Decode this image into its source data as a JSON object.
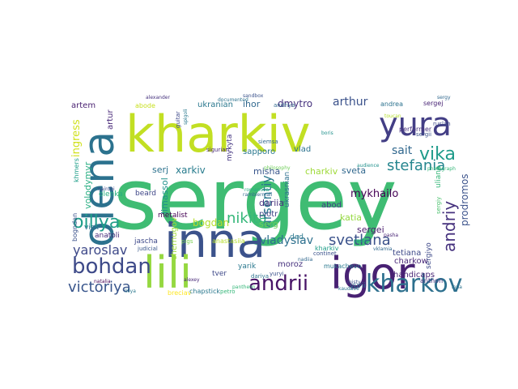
{
  "word_cloud": {
    "palette": "viridis",
    "background": "#ffffff",
    "words": [
      {
        "text": "sergey",
        "color": "#3fbc73"
      },
      {
        "text": "kharkiv",
        "color": "#c2df23"
      },
      {
        "text": "inna",
        "color": "#3b528b"
      },
      {
        "text": "igor",
        "color": "#482173"
      },
      {
        "text": "olena",
        "color": "#2c728e"
      },
      {
        "text": "lili",
        "color": "#95d840"
      },
      {
        "text": "yura",
        "color": "#433e85"
      },
      {
        "text": "kharkov",
        "color": "#2d708e"
      },
      {
        "text": "andrii",
        "color": "#481467"
      },
      {
        "text": "bohdan",
        "color": "#3e4a89"
      },
      {
        "text": "victoriya",
        "color": "#39568c"
      },
      {
        "text": "oillya",
        "color": "#1f9e89"
      },
      {
        "text": "svetlana",
        "color": "#3b528b"
      },
      {
        "text": "andriy",
        "color": "#46327e"
      },
      {
        "text": "vika",
        "color": "#1e9b8a"
      },
      {
        "text": "sait",
        "color": "#31688e"
      },
      {
        "text": "stefania",
        "color": "#25858e"
      },
      {
        "text": "nikita",
        "color": "#35b779"
      },
      {
        "text": "arsentiy",
        "color": "#2a788e"
      },
      {
        "text": "yaroslav",
        "color": "#3e4989"
      },
      {
        "text": "vladyslav",
        "color": "#2d708e"
      },
      {
        "text": "mykhailo",
        "color": "#440154"
      },
      {
        "text": "arthur",
        "color": "#3b528b"
      },
      {
        "text": "dmytro",
        "color": "#46327e"
      },
      {
        "text": "ihor",
        "color": "#31688e"
      },
      {
        "text": "ukranian",
        "color": "#2a788e"
      },
      {
        "text": "artem",
        "color": "#481f70"
      },
      {
        "text": "bogdan",
        "color": "#b5de2b"
      },
      {
        "text": "volodymyr",
        "color": "#27ad81"
      },
      {
        "text": "serj",
        "color": "#2c728e"
      },
      {
        "text": "xarkiv",
        "color": "#287c8e"
      },
      {
        "text": "misha",
        "color": "#39568c"
      },
      {
        "text": "sveta",
        "color": "#31688e"
      },
      {
        "text": "charkiv",
        "color": "#9fda3a"
      },
      {
        "text": "vlad",
        "color": "#2c728e"
      },
      {
        "text": "sapporo",
        "color": "#2a788e"
      },
      {
        "text": "dariia",
        "color": "#46327e"
      },
      {
        "text": "piotr",
        "color": "#414487"
      },
      {
        "text": "serg",
        "color": "#6ece58"
      },
      {
        "text": "abod",
        "color": "#433e85"
      },
      {
        "text": "katia",
        "color": "#95d840"
      },
      {
        "text": "sergei",
        "color": "#481a6c"
      },
      {
        "text": "charkow",
        "color": "#482878"
      },
      {
        "text": "tetiana",
        "color": "#3e4a89"
      },
      {
        "text": "handicaps",
        "color": "#482475"
      },
      {
        "text": "moroz",
        "color": "#46327e"
      },
      {
        "text": "yarik",
        "color": "#2a788e"
      },
      {
        "text": "yurii",
        "color": "#2c728e"
      },
      {
        "text": "metalist",
        "color": "#440154"
      },
      {
        "text": "limassol",
        "color": "#21918c"
      },
      {
        "text": "anatoli",
        "color": "#472c7a"
      },
      {
        "text": "jascha",
        "color": "#3e4989"
      },
      {
        "text": "olenka",
        "color": "#29af7f"
      },
      {
        "text": "ingress",
        "color": "#d0e11c"
      },
      {
        "text": "beard",
        "color": "#3f4788"
      },
      {
        "text": "mykyta",
        "color": "#453781"
      },
      {
        "text": "ukrasnian",
        "color": "#2d708e"
      },
      {
        "text": "sergiyo",
        "color": "#3e4989"
      },
      {
        "text": "prodromos",
        "color": "#3b528b"
      },
      {
        "text": "artur",
        "color": "#482878"
      },
      {
        "text": "chernugov",
        "color": "#a0da39"
      },
      {
        "text": "ded",
        "color": "#2a788e"
      },
      {
        "text": "tver",
        "color": "#3e4989"
      },
      {
        "text": "vick",
        "color": "#2c728e"
      },
      {
        "text": "khmers",
        "color": "#1f9e89"
      },
      {
        "text": "bogndan",
        "color": "#3b528b"
      },
      {
        "text": "anastasiia",
        "color": "#b5de2b"
      },
      {
        "text": "andriya",
        "color": "#31688e"
      },
      {
        "text": "andrea",
        "color": "#2c728e"
      },
      {
        "text": "sergej",
        "color": "#482475"
      },
      {
        "text": "anthon",
        "color": "#453781"
      },
      {
        "text": "abode",
        "color": "#c8e020"
      },
      {
        "text": "breciav",
        "color": "#fde725"
      },
      {
        "text": "chapstick",
        "color": "#2a788e"
      },
      {
        "text": "petro",
        "color": "#35b779"
      },
      {
        "text": "judicial",
        "color": "#39568c"
      },
      {
        "text": "ruslan",
        "color": "#3e4989"
      },
      {
        "text": "uliana",
        "color": "#35b779"
      },
      {
        "text": "mukachevo",
        "color": "#2a788e"
      },
      {
        "text": "kharkiv",
        "color": "#1f9e89"
      },
      {
        "text": "sergiy",
        "color": "#4ac16d"
      },
      {
        "text": "sergii",
        "color": "#3b528b"
      },
      {
        "text": "siemsa",
        "color": "#31688e"
      },
      {
        "text": "sigurian",
        "color": "#482878"
      },
      {
        "text": "performer",
        "color": "#46327e"
      },
      {
        "text": "continet",
        "color": "#3b528b"
      },
      {
        "text": "pigs",
        "color": "#7ad151"
      },
      {
        "text": "dariya",
        "color": "#2c728e"
      },
      {
        "text": "ramblermail",
        "color": "#31688e"
      },
      {
        "text": "romanova",
        "color": "#27ad81"
      },
      {
        "text": "guitar",
        "color": "#3e4989"
      },
      {
        "text": "philosophy",
        "color": "#6ece58"
      },
      {
        "text": "audience",
        "color": "#21918c"
      },
      {
        "text": "sandbox",
        "color": "#3b528b"
      },
      {
        "text": "nadiia",
        "color": "#31688e"
      },
      {
        "text": "kaudabe",
        "color": "#2c728e"
      },
      {
        "text": "alexey",
        "color": "#482878"
      },
      {
        "text": "photograph",
        "color": "#35b779"
      },
      {
        "text": "spigoli",
        "color": "#2a788e"
      },
      {
        "text": "toucan",
        "color": "#b5de2b"
      },
      {
        "text": "sergy",
        "color": "#31688e"
      },
      {
        "text": "nairobi",
        "color": "#3e4989"
      },
      {
        "text": "documented",
        "color": "#2c728e"
      },
      {
        "text": "pastor",
        "color": "#1f9e89"
      },
      {
        "text": "yuryi",
        "color": "#3b528b"
      },
      {
        "text": "natalia",
        "color": "#440154"
      },
      {
        "text": "liliya",
        "color": "#2a788e"
      },
      {
        "text": "alexander",
        "color": "#46327e"
      },
      {
        "text": "pantheon",
        "color": "#35b779"
      },
      {
        "text": "vklamia",
        "color": "#31688e"
      },
      {
        "text": "pasha",
        "color": "#482475"
      },
      {
        "text": "boris",
        "color": "#21918c"
      },
      {
        "text": "misty",
        "color": "#3b528b"
      },
      {
        "text": "inna",
        "color": "#2c728e"
      }
    ]
  }
}
